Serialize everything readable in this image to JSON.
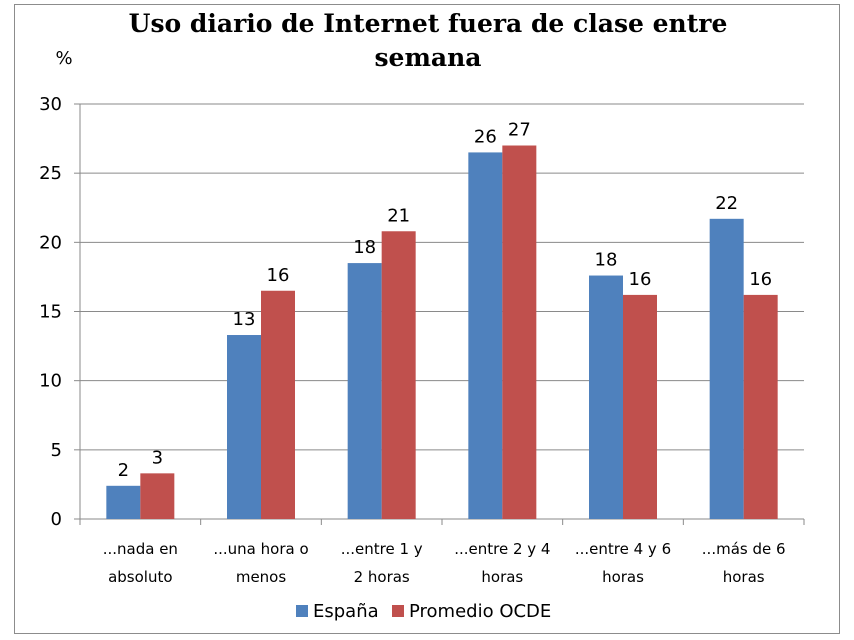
{
  "chart_data": {
    "type": "bar",
    "title_lines": [
      "Uso diario de Internet fuera de clase entre",
      "semana"
    ],
    "ylabel": "%",
    "xlabel": "",
    "ylim": [
      0,
      30
    ],
    "yticks": [
      0,
      5,
      10,
      15,
      20,
      25,
      30
    ],
    "grid": true,
    "legend_position": "bottom",
    "categories": [
      [
        "...nada en",
        "absoluto"
      ],
      [
        "...una hora o",
        "menos"
      ],
      [
        "...entre 1 y",
        "2 horas"
      ],
      [
        "...entre 2 y 4",
        "horas"
      ],
      [
        "...entre 4 y 6",
        "horas"
      ],
      [
        "...más de 6",
        "horas"
      ]
    ],
    "series": [
      {
        "name": "España",
        "color": "#4F81BD",
        "values": [
          2.4,
          13.3,
          18.5,
          26.5,
          17.6,
          21.7
        ],
        "labels": [
          "2",
          "13",
          "18",
          "26",
          "18",
          "22"
        ]
      },
      {
        "name": "Promedio OCDE",
        "color": "#C0504D",
        "values": [
          3.3,
          16.5,
          20.8,
          27.0,
          16.2,
          16.2
        ],
        "labels": [
          "3",
          "16",
          "21",
          "27",
          "16",
          "16"
        ]
      }
    ]
  }
}
